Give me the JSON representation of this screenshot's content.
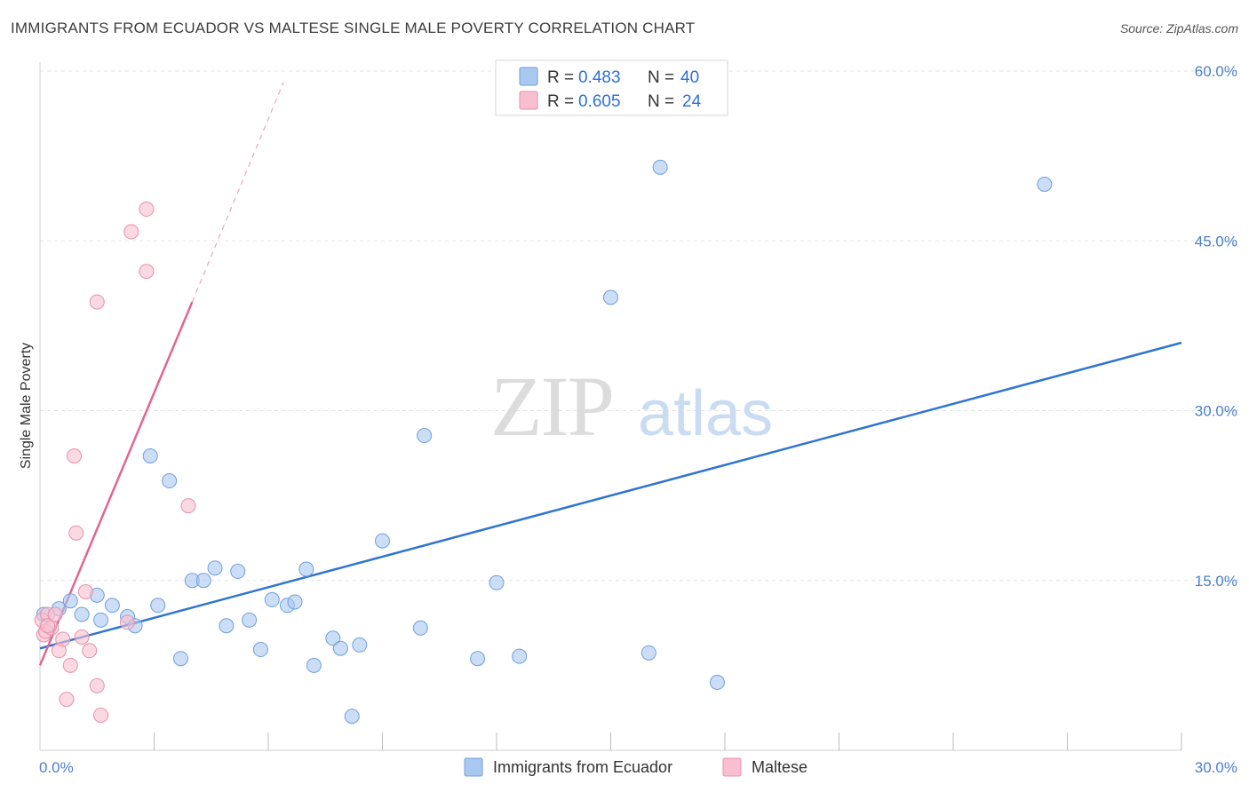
{
  "header": {
    "title": "IMMIGRANTS FROM ECUADOR VS MALTESE SINGLE MALE POVERTY CORRELATION CHART",
    "source": "Source: ZipAtlas.com"
  },
  "watermark": {
    "zip": "ZIP",
    "atlas": "atlas"
  },
  "chart_data": {
    "type": "scatter",
    "title": "IMMIGRANTS FROM ECUADOR VS MALTESE SINGLE MALE POVERTY CORRELATION CHART",
    "xlabel": "",
    "ylabel": "Single Male Poverty",
    "xlim": [
      0,
      30
    ],
    "ylim": [
      0,
      60
    ],
    "x_tick_labels": [
      "0.0%",
      "30.0%"
    ],
    "y_ticks": [
      15,
      30,
      45,
      60
    ],
    "y_tick_labels": [
      "15.0%",
      "30.0%",
      "45.0%",
      "60.0%"
    ],
    "grid": true,
    "legend_position": "top-center",
    "stats": [
      {
        "r_label": "R =",
        "r": "0.483",
        "n_label": "N =",
        "n": "40"
      },
      {
        "r_label": "R =",
        "r": "0.605",
        "n_label": "N =",
        "n": "24"
      }
    ],
    "series": [
      {
        "name": "Immigrants from Ecuador",
        "color": "#a9c8f0",
        "edge": "#6f9fde",
        "line_color": "#2f74d0",
        "trend": {
          "x0": 0,
          "y0": 9.0,
          "x1": 30,
          "y1": 36.0
        },
        "points": [
          [
            0.1,
            12.0
          ],
          [
            0.5,
            12.5
          ],
          [
            0.8,
            13.2
          ],
          [
            1.1,
            12.0
          ],
          [
            1.5,
            13.7
          ],
          [
            1.6,
            11.5
          ],
          [
            1.9,
            12.8
          ],
          [
            2.3,
            11.8
          ],
          [
            2.5,
            11.0
          ],
          [
            2.9,
            26.0
          ],
          [
            3.1,
            12.8
          ],
          [
            3.4,
            23.8
          ],
          [
            3.7,
            8.1
          ],
          [
            4.0,
            15.0
          ],
          [
            4.3,
            15.0
          ],
          [
            4.6,
            16.1
          ],
          [
            4.9,
            11.0
          ],
          [
            5.2,
            15.8
          ],
          [
            5.5,
            11.5
          ],
          [
            5.8,
            8.9
          ],
          [
            6.1,
            13.3
          ],
          [
            6.5,
            12.8
          ],
          [
            6.7,
            13.1
          ],
          [
            7.0,
            16.0
          ],
          [
            7.2,
            7.5
          ],
          [
            7.7,
            9.9
          ],
          [
            7.9,
            9.0
          ],
          [
            8.2,
            3.0
          ],
          [
            8.4,
            9.3
          ],
          [
            9.0,
            18.5
          ],
          [
            10.0,
            10.8
          ],
          [
            10.1,
            27.8
          ],
          [
            11.5,
            8.1
          ],
          [
            12.0,
            14.8
          ],
          [
            12.6,
            8.3
          ],
          [
            15.0,
            40.0
          ],
          [
            16.0,
            8.6
          ],
          [
            16.3,
            51.5
          ],
          [
            17.8,
            6.0
          ],
          [
            26.4,
            50.0
          ]
        ]
      },
      {
        "name": "Maltese",
        "color": "#f7bfd0",
        "edge": "#e890ab",
        "line_color": "#e06694",
        "trend": {
          "x0": 0,
          "y0": 7.5,
          "x1": 4.0,
          "y1": 39.6
        },
        "trend_ext": {
          "x0": 4.0,
          "y0": 39.6,
          "x1": 6.4,
          "y1": 59.0
        },
        "points": [
          [
            0.05,
            11.5
          ],
          [
            0.1,
            10.2
          ],
          [
            0.15,
            10.5
          ],
          [
            0.2,
            12.0
          ],
          [
            0.3,
            10.8
          ],
          [
            0.4,
            12.0
          ],
          [
            0.5,
            8.8
          ],
          [
            0.6,
            9.8
          ],
          [
            0.7,
            4.5
          ],
          [
            0.8,
            7.5
          ],
          [
            0.9,
            26.0
          ],
          [
            0.95,
            19.2
          ],
          [
            1.1,
            10.0
          ],
          [
            1.2,
            14.0
          ],
          [
            1.3,
            8.8
          ],
          [
            1.5,
            5.7
          ],
          [
            1.6,
            3.1
          ],
          [
            1.5,
            39.6
          ],
          [
            2.3,
            11.3
          ],
          [
            2.4,
            45.8
          ],
          [
            2.8,
            47.8
          ],
          [
            2.8,
            42.3
          ],
          [
            3.9,
            21.6
          ],
          [
            0.2,
            11.0
          ]
        ]
      }
    ]
  }
}
